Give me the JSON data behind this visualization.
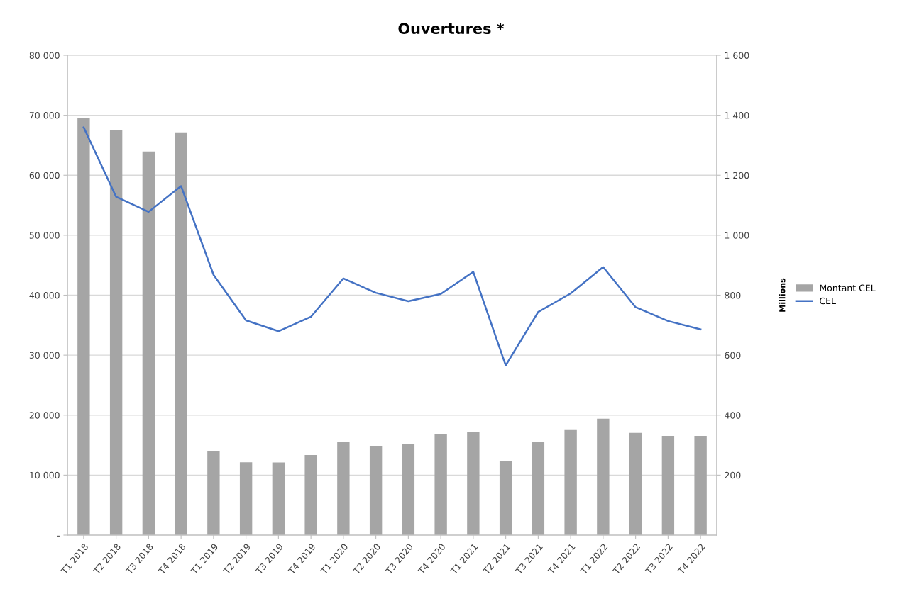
{
  "chart_data": {
    "type": "bar",
    "title": "Ouvertures *",
    "y2label": "Millions",
    "categories": [
      "T1 2018",
      "T2 2018",
      "T3 2018",
      "T4 2018",
      "T1 2019",
      "T2 2019",
      "T3 2019",
      "T4 2019",
      "T1 2020",
      "T2 2020",
      "T3 2020",
      "T4 2020",
      "T1 2021",
      "T2 2021",
      "T3 2021",
      "T4 2021",
      "T1 2022",
      "T2 2022",
      "T3 2022",
      "T4 2022"
    ],
    "series": [
      {
        "name": "Montant CEL",
        "axis": "y2",
        "color": "#a5a5a5",
        "values": [
          1390,
          1352,
          1279,
          1343,
          279,
          243,
          242,
          267,
          312,
          298,
          303,
          337,
          344,
          247,
          310,
          353,
          388,
          341,
          331,
          331
        ]
      },
      {
        "name": "CEL",
        "type": "line",
        "color": "#4472c4",
        "values": [
          68000,
          56400,
          53900,
          58200,
          43400,
          35800,
          34000,
          36400,
          42800,
          40400,
          39000,
          40200,
          43900,
          28300,
          37200,
          40300,
          44700,
          38000,
          35700,
          34300
        ]
      }
    ],
    "ylim": [
      0,
      80000
    ],
    "yticks": [
      {
        "value": 0,
        "label": "-"
      },
      {
        "value": 10000,
        "label": "10 000"
      },
      {
        "value": 20000,
        "label": "20 000"
      },
      {
        "value": 30000,
        "label": "30 000"
      },
      {
        "value": 40000,
        "label": "40 000"
      },
      {
        "value": 50000,
        "label": "50 000"
      },
      {
        "value": 60000,
        "label": "60 000"
      },
      {
        "value": 70000,
        "label": "70 000"
      },
      {
        "value": 80000,
        "label": "80 000"
      }
    ],
    "y2lim": [
      0,
      1600
    ],
    "y2ticks": [
      200,
      400,
      600,
      800,
      {
        "value": 1000,
        "label": "1 000"
      },
      {
        "value": 1200,
        "label": "1 200"
      },
      {
        "value": 1400,
        "label": "1 400"
      },
      {
        "value": 1600,
        "label": "1 600"
      }
    ],
    "grid": "y",
    "legend": "right"
  }
}
